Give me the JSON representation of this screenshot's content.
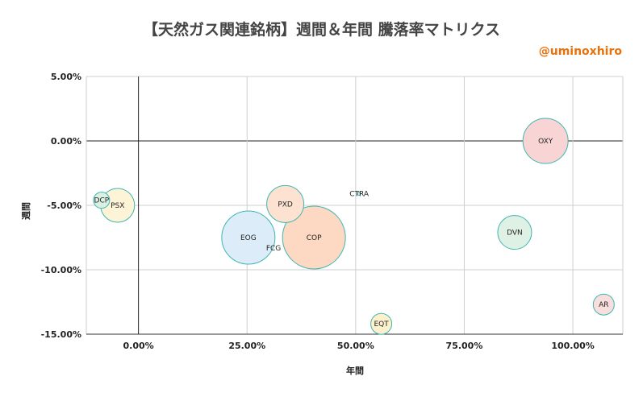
{
  "title": "【天然ガス関連銘柄】週間＆年間 騰落率マトリクス",
  "author": "@uminoxhiro",
  "chart_data": {
    "type": "scatter",
    "title": "【天然ガス関連銘柄】週間＆年間 騰落率マトリクス",
    "xlabel": "年間",
    "ylabel": "週間",
    "xlim": [
      -0.12,
      1.115
    ],
    "ylim": [
      -0.15,
      0.05
    ],
    "x_ticks": [
      0,
      0.25,
      0.5,
      0.75,
      1.0
    ],
    "x_tick_labels": [
      "0.00%",
      "25.00%",
      "50.00%",
      "75.00%",
      "100.00%"
    ],
    "y_ticks": [
      0.05,
      0,
      -0.05,
      -0.1,
      -0.15
    ],
    "y_tick_labels": [
      "5.00%",
      "0.00%",
      "-5.00%",
      "-10.00%",
      "-15.00%"
    ],
    "grid": true,
    "points": [
      {
        "label": "DCP",
        "x": -0.085,
        "y": -0.046,
        "size": 10,
        "color": "#d9f0e3"
      },
      {
        "label": "PSX",
        "x": -0.048,
        "y": -0.05,
        "size": 21,
        "color": "#fdf3d6"
      },
      {
        "label": "PXD",
        "x": 0.338,
        "y": -0.049,
        "size": 23,
        "color": "#fde2d2"
      },
      {
        "label": "CTRA",
        "x": 0.508,
        "y": -0.041,
        "size": 2,
        "color": "#e8eaf6"
      },
      {
        "label": "EOG",
        "x": 0.253,
        "y": -0.075,
        "size": 33,
        "color": "#dcecf9"
      },
      {
        "label": "FCG",
        "x": 0.311,
        "y": -0.083,
        "size": 0,
        "color": "#ffffff"
      },
      {
        "label": "COP",
        "x": 0.404,
        "y": -0.075,
        "size": 39,
        "color": "#fdd9c3"
      },
      {
        "label": "DVN",
        "x": 0.866,
        "y": -0.071,
        "size": 21,
        "color": "#dff1e4"
      },
      {
        "label": "OXY",
        "x": 0.937,
        "y": 0.0,
        "size": 28,
        "color": "#f8d4d4"
      },
      {
        "label": "EQT",
        "x": 0.559,
        "y": -0.142,
        "size": 13,
        "color": "#fdf0cd"
      },
      {
        "label": "AR",
        "x": 1.071,
        "y": -0.127,
        "size": 13,
        "color": "#f9dede"
      }
    ]
  }
}
